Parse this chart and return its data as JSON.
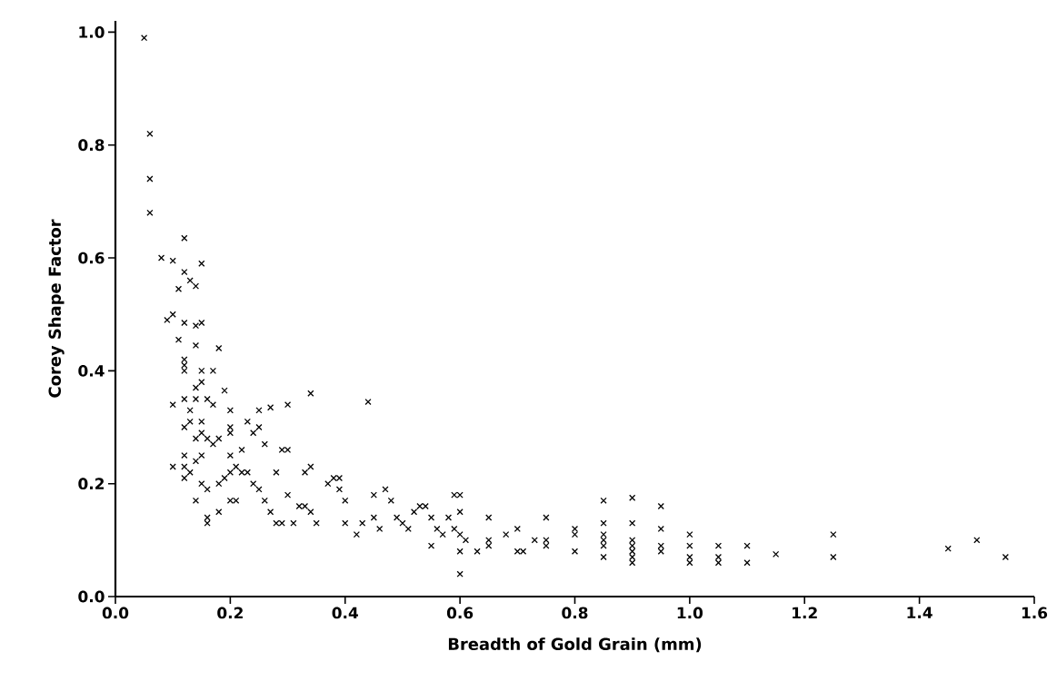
{
  "chart_data": {
    "type": "scatter",
    "xlabel": "Breadth of Gold Grain (mm)",
    "ylabel": "Corey Shape Factor",
    "xlim": [
      0,
      1.6
    ],
    "ylim": [
      0,
      1.02
    ],
    "xticks": [
      {
        "value": 0,
        "label": "0.0"
      },
      0.2,
      0.4,
      0.6,
      0.8,
      {
        "value": 1,
        "label": "1.0"
      },
      1.2,
      1.4,
      1.6
    ],
    "yticks": [
      {
        "value": 0,
        "label": "0.0"
      },
      0.2,
      0.4,
      0.6,
      0.8,
      {
        "value": 1,
        "label": "1.0"
      }
    ],
    "marker": "cross",
    "series": [
      {
        "color": "#000000",
        "x": [
          0.05,
          0.06,
          0.06,
          0.06,
          0.08,
          0.1,
          0.12,
          0.12,
          0.13,
          0.11,
          0.15,
          0.14,
          0.09,
          0.1,
          0.12,
          0.14,
          0.15,
          0.11,
          0.14,
          0.18,
          0.12,
          0.12,
          0.12,
          0.15,
          0.17,
          0.14,
          0.15,
          0.19,
          0.1,
          0.12,
          0.14,
          0.16,
          0.17,
          0.13,
          0.13,
          0.15,
          0.15,
          0.12,
          0.14,
          0.16,
          0.18,
          0.2,
          0.2,
          0.2,
          0.17,
          0.1,
          0.12,
          0.12,
          0.13,
          0.12,
          0.15,
          0.14,
          0.15,
          0.16,
          0.14,
          0.16,
          0.16,
          0.18,
          0.19,
          0.18,
          0.2,
          0.2,
          0.21,
          0.22,
          0.23,
          0.2,
          0.21,
          0.22,
          0.23,
          0.24,
          0.25,
          0.25,
          0.26,
          0.27,
          0.3,
          0.29,
          0.3,
          0.28,
          0.24,
          0.25,
          0.26,
          0.27,
          0.28,
          0.29,
          0.3,
          0.31,
          0.32,
          0.33,
          0.34,
          0.33,
          0.34,
          0.35,
          0.34,
          0.37,
          0.38,
          0.39,
          0.39,
          0.4,
          0.4,
          0.42,
          0.44,
          0.43,
          0.45,
          0.45,
          0.47,
          0.48,
          0.46,
          0.49,
          0.5,
          0.51,
          0.52,
          0.53,
          0.54,
          0.55,
          0.56,
          0.57,
          0.58,
          0.59,
          0.6,
          0.6,
          0.59,
          0.6,
          0.61,
          0.6,
          0.6,
          0.55,
          0.63,
          0.65,
          0.65,
          0.65,
          0.68,
          0.7,
          0.7,
          0.71,
          0.73,
          0.75,
          0.75,
          0.75,
          0.8,
          0.8,
          0.8,
          0.85,
          0.85,
          0.85,
          0.85,
          0.85,
          0.85,
          0.9,
          0.9,
          0.9,
          0.9,
          0.9,
          0.9,
          0.9,
          0.95,
          0.95,
          0.95,
          0.95,
          1.0,
          1.0,
          1.0,
          1.0,
          1.05,
          1.05,
          1.05,
          1.1,
          1.1,
          1.15,
          1.25,
          1.25,
          1.45,
          1.5,
          1.55
        ],
        "values": [
          0.99,
          0.82,
          0.74,
          0.68,
          0.6,
          0.595,
          0.635,
          0.575,
          0.56,
          0.545,
          0.59,
          0.55,
          0.49,
          0.5,
          0.485,
          0.48,
          0.485,
          0.455,
          0.445,
          0.44,
          0.42,
          0.41,
          0.4,
          0.4,
          0.4,
          0.37,
          0.38,
          0.365,
          0.34,
          0.35,
          0.35,
          0.35,
          0.34,
          0.33,
          0.31,
          0.31,
          0.29,
          0.3,
          0.28,
          0.28,
          0.28,
          0.33,
          0.3,
          0.29,
          0.27,
          0.23,
          0.25,
          0.23,
          0.22,
          0.21,
          0.25,
          0.24,
          0.2,
          0.19,
          0.17,
          0.14,
          0.13,
          0.15,
          0.21,
          0.2,
          0.25,
          0.22,
          0.23,
          0.22,
          0.22,
          0.17,
          0.17,
          0.26,
          0.31,
          0.29,
          0.33,
          0.3,
          0.27,
          0.335,
          0.34,
          0.26,
          0.26,
          0.22,
          0.2,
          0.19,
          0.17,
          0.15,
          0.13,
          0.13,
          0.18,
          0.13,
          0.16,
          0.22,
          0.23,
          0.16,
          0.15,
          0.13,
          0.36,
          0.2,
          0.21,
          0.19,
          0.21,
          0.17,
          0.13,
          0.11,
          0.345,
          0.13,
          0.18,
          0.14,
          0.19,
          0.17,
          0.12,
          0.14,
          0.13,
          0.12,
          0.15,
          0.16,
          0.16,
          0.14,
          0.12,
          0.11,
          0.14,
          0.18,
          0.18,
          0.15,
          0.12,
          0.11,
          0.1,
          0.08,
          0.04,
          0.09,
          0.08,
          0.14,
          0.1,
          0.09,
          0.11,
          0.12,
          0.08,
          0.08,
          0.1,
          0.14,
          0.1,
          0.09,
          0.12,
          0.11,
          0.08,
          0.17,
          0.13,
          0.11,
          0.1,
          0.09,
          0.07,
          0.175,
          0.13,
          0.1,
          0.09,
          0.08,
          0.07,
          0.06,
          0.16,
          0.12,
          0.09,
          0.08,
          0.11,
          0.09,
          0.07,
          0.06,
          0.09,
          0.07,
          0.06,
          0.09,
          0.06,
          0.075,
          0.11,
          0.07,
          0.085,
          0.1,
          0.07
        ]
      }
    ]
  }
}
